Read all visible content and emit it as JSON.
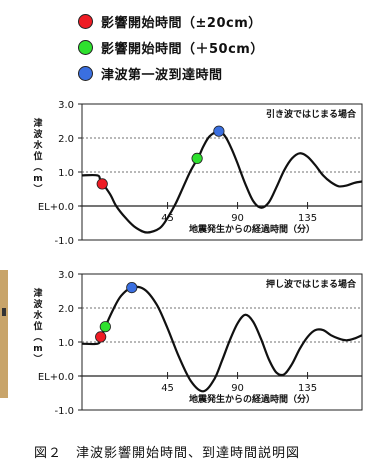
{
  "legend": [
    {
      "label": "影響開始時間（±20cm）",
      "color": "#ee1c24"
    },
    {
      "label": "影響開始時間（＋50cm）",
      "color": "#2ee02e"
    },
    {
      "label": "津波第一波到達時間",
      "color": "#3a6fe0"
    }
  ],
  "caption": "図２　津波影響開始時間、到達時間説明図",
  "chart_data": [
    {
      "type": "line",
      "title": "引き波ではじまる場合",
      "xlabel": "地震発生からの経過時間（分）",
      "ylabel": "津波水位（m）",
      "x_ticks": [
        "45",
        "90",
        "135"
      ],
      "x_tick_values": [
        45,
        90,
        135
      ],
      "y_ticks": [
        "3.0",
        "2.0",
        "1.0",
        "EL+0.0",
        "-1.0"
      ],
      "y_tick_values": [
        3,
        2,
        1,
        0,
        -1
      ],
      "xlim": [
        -10,
        170
      ],
      "ylim": [
        -1,
        3
      ],
      "grid": "dotted horizontal at 1.0 and 2.0",
      "series": [
        {
          "x": [
            -10,
            0,
            2,
            8,
            12,
            18,
            25,
            32,
            40,
            45,
            50,
            55,
            60,
            65,
            68,
            72,
            78,
            82,
            86,
            90,
            95,
            100,
            105,
            110,
            115,
            120,
            125,
            130,
            135,
            140,
            145,
            150,
            155,
            160,
            165,
            170
          ],
          "y": [
            0.9,
            0.9,
            0.75,
            0.35,
            0.0,
            -0.35,
            -0.65,
            -0.78,
            -0.65,
            -0.35,
            0.05,
            0.55,
            1.05,
            1.45,
            1.75,
            2.05,
            2.2,
            2.05,
            1.7,
            1.25,
            0.65,
            0.15,
            -0.05,
            0.1,
            0.55,
            1.05,
            1.4,
            1.55,
            1.45,
            1.2,
            0.9,
            0.7,
            0.58,
            0.6,
            0.68,
            0.72
          ]
        }
      ],
      "markers": [
        {
          "x": 3,
          "y": 0.65,
          "color": "#ee1c24"
        },
        {
          "x": 64,
          "y": 1.4,
          "color": "#2ee02e"
        },
        {
          "x": 78,
          "y": 2.2,
          "color": "#3a6fe0"
        }
      ]
    },
    {
      "type": "line",
      "title": "押し波ではじまる場合",
      "xlabel": "地震発生からの経過時間（分）",
      "ylabel": "津波水位（m）",
      "x_ticks": [
        "45",
        "90",
        "135"
      ],
      "x_tick_values": [
        45,
        90,
        135
      ],
      "y_ticks": [
        "3.0",
        "2.0",
        "1.0",
        "EL+0.0",
        "-1.0"
      ],
      "y_tick_values": [
        3,
        2,
        1,
        0,
        -1
      ],
      "xlim": [
        -10,
        170
      ],
      "ylim": [
        -1,
        3
      ],
      "grid": "dotted horizontal at 1.0 and 2.0",
      "series": [
        {
          "x": [
            -10,
            0,
            2,
            5,
            10,
            15,
            22,
            30,
            38,
            45,
            52,
            60,
            68,
            75,
            80,
            85,
            90,
            95,
            100,
            105,
            110,
            115,
            120,
            125,
            130,
            135,
            140,
            145,
            150,
            155,
            160,
            165,
            170
          ],
          "y": [
            0.95,
            0.95,
            1.1,
            1.45,
            1.95,
            2.35,
            2.6,
            2.55,
            2.1,
            1.4,
            0.6,
            -0.15,
            -0.45,
            -0.1,
            0.45,
            1.05,
            1.55,
            1.8,
            1.6,
            1.1,
            0.5,
            0.1,
            0.05,
            0.35,
            0.8,
            1.15,
            1.35,
            1.35,
            1.2,
            1.1,
            1.05,
            1.1,
            1.2
          ]
        }
      ],
      "markers": [
        {
          "x": 2,
          "y": 1.15,
          "color": "#ee1c24"
        },
        {
          "x": 5,
          "y": 1.45,
          "color": "#2ee02e"
        },
        {
          "x": 22,
          "y": 2.6,
          "color": "#3a6fe0"
        }
      ]
    }
  ]
}
